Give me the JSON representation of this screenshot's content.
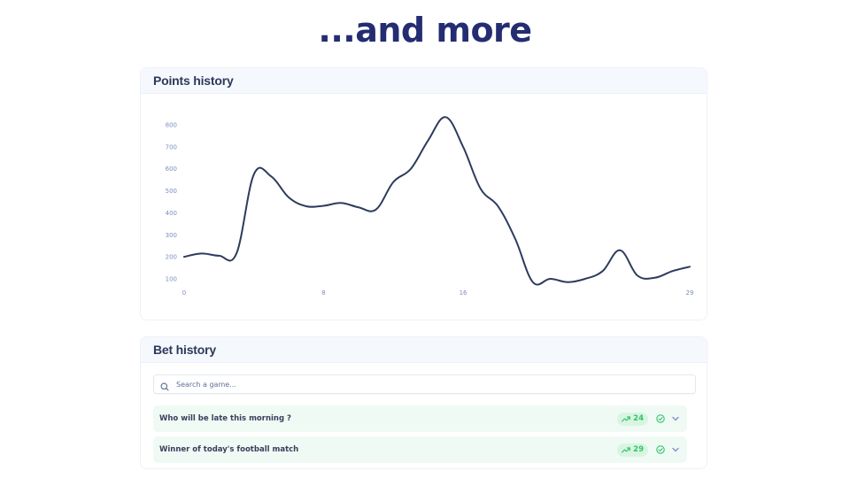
{
  "headline": "...and more",
  "points_card": {
    "title": "Points history"
  },
  "bets_card": {
    "title": "Bet history",
    "search": {
      "placeholder": "Search a game...",
      "value": ""
    },
    "rows": [
      {
        "title": "Who will be late this morning ?",
        "points": "24",
        "trend_icon": "trending-up-icon",
        "status_icon": "check-circle-icon",
        "expand_icon": "chevron-down-icon"
      },
      {
        "title": "Winner of today's football match",
        "points": "29",
        "trend_icon": "trending-up-icon",
        "status_icon": "check-circle-icon",
        "expand_icon": "chevron-down-icon"
      }
    ]
  },
  "colors": {
    "headline": "#242c72",
    "line": "#2d3b5e",
    "tick": "#7b8ec2",
    "card_header": "#f5f8fd",
    "row_bg": "#f0faf4",
    "pill_bg": "#d9f5e2",
    "success": "#34c46a",
    "chevron": "#7d8bc8"
  },
  "chart_data": {
    "type": "line",
    "title": "Points history",
    "xlabel": "",
    "ylabel": "",
    "x": [
      0,
      1,
      2,
      3,
      4,
      5,
      6,
      7,
      8,
      9,
      10,
      11,
      12,
      13,
      14,
      15,
      16,
      17,
      18,
      19,
      20,
      21,
      22,
      23,
      24,
      25,
      26,
      27,
      28,
      29
    ],
    "series": [
      {
        "name": "Points",
        "values": [
          200,
          215,
          205,
          215,
          575,
          565,
          470,
          430,
          432,
          445,
          425,
          415,
          540,
          600,
          730,
          835,
          700,
          510,
          430,
          280,
          85,
          100,
          85,
          100,
          135,
          230,
          115,
          105,
          135,
          155
        ]
      }
    ],
    "x_ticks": [
      "0",
      "8",
      "16",
      "29"
    ],
    "y_ticks": [
      "100",
      "200",
      "300",
      "400",
      "500",
      "600",
      "700",
      "800"
    ],
    "xlim": [
      0,
      29
    ],
    "ylim": [
      100,
      800
    ],
    "grid": false,
    "legend": "none"
  }
}
